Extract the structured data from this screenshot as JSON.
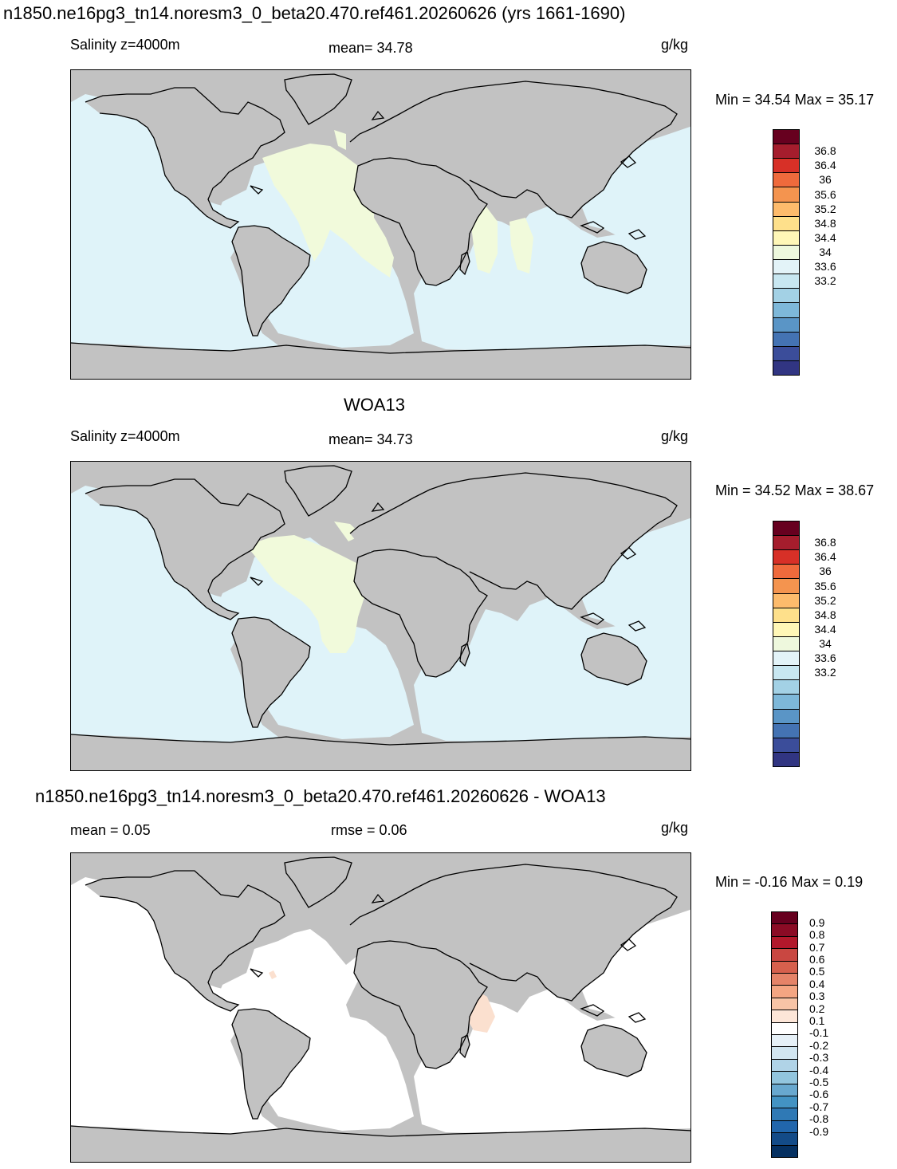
{
  "figure": {
    "title": "n1850.ne16pg3_tn14.noresm3_0_beta20.470.ref461.20260626 (yrs 1661-1690)"
  },
  "panels": [
    {
      "id": "model",
      "heading": "",
      "left_label": "Salinity z=4000m",
      "center_label": "mean=  34.78",
      "units": "g/kg",
      "minmax": "Min =  34.54 Max =  35.17",
      "ocean_color": "#dff3f9",
      "highlight_color": "#f1fadb",
      "colorbar_labels": [
        "36.8",
        "36.4",
        "36",
        "35.6",
        "35.2",
        "34.8",
        "34.4",
        "34",
        "33.6",
        "33.2"
      ],
      "colorbar_colors": [
        "#67001f",
        "#a51d2d",
        "#d73027",
        "#ef6a3c",
        "#f4944f",
        "#fdbb6c",
        "#fee08b",
        "#fff7b7",
        "#eef8dd",
        "#e3f3f8",
        "#c8e7f1",
        "#a3d1e5",
        "#7eb8d9",
        "#5a95c6",
        "#4473b3",
        "#3b4d9a",
        "#313582"
      ]
    },
    {
      "id": "obs",
      "heading": "WOA13",
      "left_label": "Salinity z=4000m",
      "center_label": "mean=  34.73",
      "units": "g/kg",
      "minmax": "Min =  34.52 Max =  38.67",
      "ocean_color": "#dff3f9",
      "highlight_color": "#f1fadb",
      "colorbar_labels": [
        "36.8",
        "36.4",
        "36",
        "35.6",
        "35.2",
        "34.8",
        "34.4",
        "34",
        "33.6",
        "33.2"
      ],
      "colorbar_colors": [
        "#67001f",
        "#a51d2d",
        "#d73027",
        "#ef6a3c",
        "#f4944f",
        "#fdbb6c",
        "#fee08b",
        "#fff7b7",
        "#eef8dd",
        "#e3f3f8",
        "#c8e7f1",
        "#a3d1e5",
        "#7eb8d9",
        "#5a95c6",
        "#4473b3",
        "#3b4d9a",
        "#313582"
      ]
    },
    {
      "id": "diff",
      "heading": "n1850.ne16pg3_tn14.noresm3_0_beta20.470.ref461.20260626 - WOA13",
      "left_label": "mean =   0.05",
      "center_label": "rmse =   0.06",
      "units": "g/kg",
      "minmax": "Min =  -0.16 Max =   0.19",
      "ocean_color": "#ffffff",
      "highlight_color": "#fbe0cf",
      "colorbar_labels": [
        "0.9",
        "0.8",
        "0.7",
        "0.6",
        "0.5",
        "0.4",
        "0.3",
        "0.2",
        "0.1",
        "-0.1",
        "-0.2",
        "-0.3",
        "-0.4",
        "-0.5",
        "-0.6",
        "-0.7",
        "-0.8",
        "-0.9"
      ],
      "colorbar_colors": [
        "#67001f",
        "#8b0b25",
        "#b2182b",
        "#c94741",
        "#d6604d",
        "#e58368",
        "#f4a582",
        "#f8c4a6",
        "#fde6d8",
        "#ffffff",
        "#e6f0f7",
        "#d1e5f0",
        "#b0d3e7",
        "#92c5de",
        "#68a8cf",
        "#4393c3",
        "#2f79b5",
        "#2166ac",
        "#134b88",
        "#053061"
      ]
    }
  ]
}
